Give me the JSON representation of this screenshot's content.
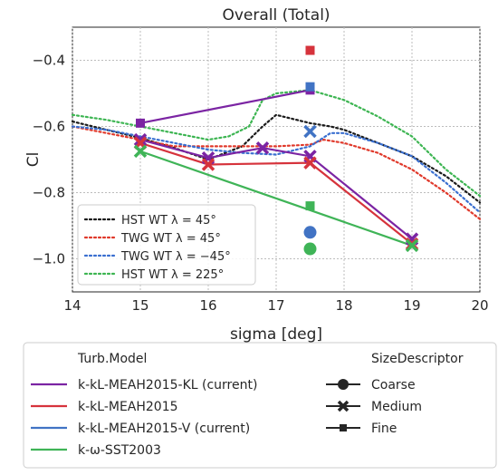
{
  "chart_data": {
    "type": "line",
    "title": "Overall (Total)",
    "xlabel": "sigma [deg]",
    "ylabel": "Cl",
    "xlim": [
      14,
      20
    ],
    "ylim": [
      -1.1,
      -0.3
    ],
    "xticks": [
      14,
      15,
      16,
      17,
      18,
      19,
      20
    ],
    "yticks": [
      -1.0,
      -0.8,
      -0.6,
      -0.4
    ],
    "xtick_labels": [
      "14",
      "15",
      "16",
      "17",
      "18",
      "19",
      "20"
    ],
    "ytick_labels": [
      "−1.0",
      "−0.8",
      "−0.6",
      "−0.4"
    ],
    "grid": true,
    "wind_tunnel_legend": [
      {
        "text": "HST WT λ = 45°",
        "color": "#1a1a1a"
      },
      {
        "text": "TWG WT λ = 45°",
        "color": "#e0392b"
      },
      {
        "text": "TWG WT λ = −45°",
        "color": "#3a6fd0"
      },
      {
        "text": "HST WT λ = 225°",
        "color": "#3db552"
      }
    ],
    "wind_tunnel_series": [
      {
        "color": "#1a1a1a",
        "x": [
          14,
          14.5,
          15,
          15.5,
          16,
          16.5,
          16.8,
          17,
          17.2,
          17.5,
          17.8,
          18,
          18.5,
          19,
          19.5,
          20
        ],
        "y": [
          -0.585,
          -0.61,
          -0.635,
          -0.665,
          -0.7,
          -0.66,
          -0.6,
          -0.565,
          -0.575,
          -0.59,
          -0.6,
          -0.61,
          -0.65,
          -0.69,
          -0.75,
          -0.83
        ]
      },
      {
        "color": "#e0392b",
        "x": [
          14,
          14.5,
          15,
          15.5,
          16,
          16.5,
          17,
          17.5,
          17.7,
          18,
          18.5,
          19,
          19.5,
          20
        ],
        "y": [
          -0.6,
          -0.62,
          -0.64,
          -0.66,
          -0.66,
          -0.66,
          -0.66,
          -0.655,
          -0.64,
          -0.65,
          -0.68,
          -0.73,
          -0.8,
          -0.88
        ]
      },
      {
        "color": "#3a6fd0",
        "x": [
          14,
          14.5,
          15,
          15.5,
          16,
          16.5,
          17,
          17.5,
          17.8,
          18,
          18.5,
          19,
          19.5,
          20
        ],
        "y": [
          -0.6,
          -0.61,
          -0.63,
          -0.65,
          -0.67,
          -0.68,
          -0.685,
          -0.66,
          -0.62,
          -0.62,
          -0.65,
          -0.69,
          -0.77,
          -0.86
        ]
      },
      {
        "color": "#3db552",
        "x": [
          14,
          14.5,
          15,
          15.5,
          16,
          16.3,
          16.6,
          16.8,
          17,
          17.5,
          18,
          18.5,
          19,
          19.5,
          20
        ],
        "y": [
          -0.565,
          -0.58,
          -0.6,
          -0.62,
          -0.64,
          -0.63,
          -0.6,
          -0.52,
          -0.5,
          -0.49,
          -0.52,
          -0.57,
          -0.63,
          -0.73,
          -0.81
        ]
      }
    ],
    "cfd_legend_title": "Turb.Model",
    "size_legend_title": "SizeDescriptor",
    "models": [
      {
        "name": "k-kL-MEAH2015-KL (current)",
        "color": "#7b24a3",
        "medium": {
          "x": [
            15,
            16,
            16.8,
            17.5,
            19
          ],
          "y": [
            -0.64,
            -0.695,
            -0.665,
            -0.69,
            -0.94
          ]
        },
        "fine": {
          "x": [
            15,
            17.5
          ],
          "y": [
            -0.59,
            -0.49
          ]
        }
      },
      {
        "name": "k-kL-MEAH2015",
        "color": "#d6333c",
        "medium": {
          "x": [
            15,
            16,
            17.5,
            19
          ],
          "y": [
            -0.65,
            -0.715,
            -0.71,
            -0.955
          ]
        },
        "fine": {
          "x": [
            17.5
          ],
          "y": [
            -0.37
          ]
        }
      },
      {
        "name": "k-kL-MEAH2015-V (current)",
        "color": "#4173c4",
        "medium": {
          "x": [
            17.5
          ],
          "y": [
            -0.615
          ]
        },
        "fine": {
          "x": [
            17.5
          ],
          "y": [
            -0.48
          ]
        },
        "coarse": {
          "x": [
            17.5
          ],
          "y": [
            -0.92
          ]
        }
      },
      {
        "name": "k-ω-SST2003",
        "color": "#3fb457",
        "medium": {
          "x": [
            15,
            19
          ],
          "y": [
            -0.675,
            -0.96
          ]
        },
        "fine": {
          "x": [
            17.5
          ],
          "y": [
            -0.84
          ]
        },
        "coarse": {
          "x": [
            17.5
          ],
          "y": [
            -0.97
          ]
        }
      }
    ],
    "size_descriptors": [
      {
        "name": "Coarse",
        "marker": "circle"
      },
      {
        "name": "Medium",
        "marker": "x"
      },
      {
        "name": "Fine",
        "marker": "square"
      }
    ]
  }
}
